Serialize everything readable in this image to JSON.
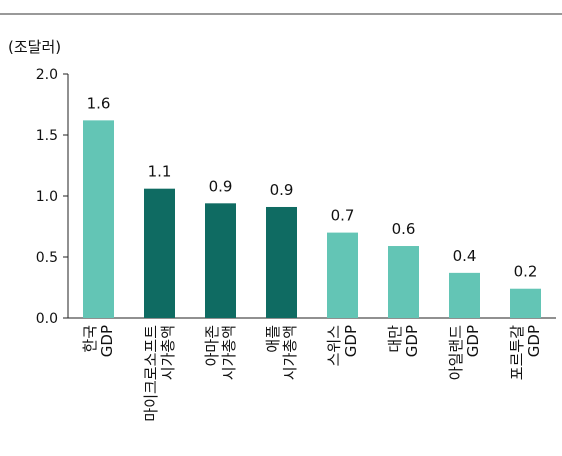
{
  "chart_data": {
    "type": "bar",
    "title": "",
    "unit_label": "(조달러)",
    "xlabel": "",
    "ylabel": "",
    "ylim": [
      0,
      2.0
    ],
    "yticks": [
      "0.0",
      "0.5",
      "1.0",
      "1.5",
      "2.0"
    ],
    "grid": false,
    "legend": "none",
    "categories": [
      [
        "한국",
        "GDP"
      ],
      [
        "마이크로소프트",
        "시가총액"
      ],
      [
        "아마존",
        "시가총액"
      ],
      [
        "애플",
        "시가총액"
      ],
      [
        "스위스",
        "GDP"
      ],
      [
        "대만",
        "GDP"
      ],
      [
        "아일랜드",
        "GDP"
      ],
      [
        "포르투갈",
        "GDP"
      ]
    ],
    "values": [
      1.62,
      1.06,
      0.94,
      0.91,
      0.7,
      0.59,
      0.37,
      0.24
    ],
    "value_labels": [
      "1.6",
      "1.1",
      "0.9",
      "0.9",
      "0.7",
      "0.6",
      "0.4",
      "0.2"
    ],
    "bar_kinds": [
      "gdp",
      "cap",
      "cap",
      "cap",
      "gdp",
      "gdp",
      "gdp",
      "gdp"
    ],
    "colors": {
      "gdp": "#63c5b5",
      "cap": "#0f6b62"
    }
  }
}
